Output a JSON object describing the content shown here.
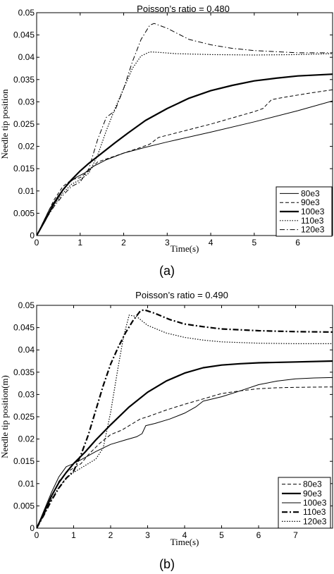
{
  "figure": {
    "panels": [
      {
        "label": "(a)"
      },
      {
        "label": "(b)"
      }
    ]
  },
  "chart_data": [
    {
      "type": "line",
      "title": "Poisson’s ratio  =  0.480",
      "xlabel": "Time(s)",
      "ylabel": "Needle tip position",
      "xlim": [
        0,
        6.8
      ],
      "ylim": [
        0,
        0.05
      ],
      "xticks": [
        0,
        1,
        2,
        3,
        4,
        5,
        6
      ],
      "yticks": [
        0,
        0.005,
        0.01,
        0.015,
        0.02,
        0.025,
        0.03,
        0.035,
        0.04,
        0.045,
        0.05
      ],
      "ytick_labels": [
        "0",
        "0.005",
        "0.01",
        "0.015",
        "0.02",
        "0.025",
        "0.03",
        "0.035",
        "0.04",
        "0.045",
        "0.05"
      ],
      "grid": false,
      "legend_position": "right",
      "series": [
        {
          "name": "80e3",
          "style": "solid-thin",
          "points": [
            [
              0,
              0
            ],
            [
              0.1,
              0.002
            ],
            [
              0.3,
              0.006
            ],
            [
              0.5,
              0.009
            ],
            [
              0.7,
              0.0115
            ],
            [
              0.9,
              0.013
            ],
            [
              1.1,
              0.014
            ],
            [
              1.3,
              0.0155
            ],
            [
              1.6,
              0.017
            ],
            [
              2.0,
              0.0185
            ],
            [
              2.5,
              0.0198
            ],
            [
              3.0,
              0.021
            ],
            [
              4.0,
              0.0232
            ],
            [
              5.0,
              0.0255
            ],
            [
              6.0,
              0.028
            ],
            [
              6.8,
              0.0302
            ]
          ]
        },
        {
          "name": "90e3",
          "style": "dashed",
          "points": [
            [
              0,
              0
            ],
            [
              0.2,
              0.004
            ],
            [
              0.4,
              0.008
            ],
            [
              0.6,
              0.011
            ],
            [
              0.8,
              0.0125
            ],
            [
              1.0,
              0.013
            ],
            [
              1.2,
              0.0145
            ],
            [
              1.4,
              0.0165
            ],
            [
              1.7,
              0.0175
            ],
            [
              2.0,
              0.0185
            ],
            [
              2.4,
              0.0198
            ],
            [
              2.6,
              0.0205
            ],
            [
              2.8,
              0.022
            ],
            [
              3.2,
              0.023
            ],
            [
              4.0,
              0.025
            ],
            [
              5.0,
              0.0278
            ],
            [
              5.2,
              0.0285
            ],
            [
              5.4,
              0.0305
            ],
            [
              5.8,
              0.0312
            ],
            [
              6.3,
              0.032
            ],
            [
              6.8,
              0.0327
            ]
          ]
        },
        {
          "name": "100e3",
          "style": "solid-bold",
          "points": [
            [
              0,
              0
            ],
            [
              0.2,
              0.0035
            ],
            [
              0.4,
              0.0072
            ],
            [
              0.6,
              0.0102
            ],
            [
              0.8,
              0.0125
            ],
            [
              1.0,
              0.0145
            ],
            [
              1.2,
              0.0162
            ],
            [
              1.5,
              0.0185
            ],
            [
              1.8,
              0.0208
            ],
            [
              2.1,
              0.023
            ],
            [
              2.5,
              0.0258
            ],
            [
              3.0,
              0.0285
            ],
            [
              3.5,
              0.0308
            ],
            [
              4.0,
              0.0325
            ],
            [
              4.5,
              0.0337
            ],
            [
              5.0,
              0.0347
            ],
            [
              5.5,
              0.0353
            ],
            [
              6.0,
              0.0358
            ],
            [
              6.8,
              0.0362
            ]
          ]
        },
        {
          "name": "110e3",
          "style": "dotted",
          "points": [
            [
              0,
              0
            ],
            [
              0.2,
              0.0035
            ],
            [
              0.4,
              0.0068
            ],
            [
              0.6,
              0.0095
            ],
            [
              0.8,
              0.0115
            ],
            [
              1.0,
              0.0125
            ],
            [
              1.2,
              0.014
            ],
            [
              1.4,
              0.018
            ],
            [
              1.6,
              0.0235
            ],
            [
              1.8,
              0.0285
            ],
            [
              2.0,
              0.033
            ],
            [
              2.2,
              0.0375
            ],
            [
              2.4,
              0.0403
            ],
            [
              2.6,
              0.0412
            ],
            [
              2.8,
              0.0411
            ],
            [
              3.2,
              0.0408
            ],
            [
              4.0,
              0.0406
            ],
            [
              5.0,
              0.0405
            ],
            [
              6.0,
              0.0406
            ],
            [
              6.8,
              0.0408
            ]
          ]
        },
        {
          "name": "120e3",
          "style": "dashdot",
          "points": [
            [
              0,
              0
            ],
            [
              0.2,
              0.0035
            ],
            [
              0.4,
              0.0065
            ],
            [
              0.6,
              0.009
            ],
            [
              0.8,
              0.011
            ],
            [
              1.0,
              0.012
            ],
            [
              1.2,
              0.015
            ],
            [
              1.4,
              0.0215
            ],
            [
              1.6,
              0.0265
            ],
            [
              1.8,
              0.028
            ],
            [
              2.0,
              0.033
            ],
            [
              2.2,
              0.039
            ],
            [
              2.4,
              0.044
            ],
            [
              2.6,
              0.0472
            ],
            [
              2.7,
              0.0476
            ],
            [
              3.0,
              0.0465
            ],
            [
              3.5,
              0.044
            ],
            [
              4.0,
              0.0428
            ],
            [
              4.5,
              0.042
            ],
            [
              5.0,
              0.0415
            ],
            [
              6.0,
              0.041
            ],
            [
              6.8,
              0.041
            ]
          ]
        }
      ]
    },
    {
      "type": "line",
      "title": "Poisson’s ratio  =  0.490",
      "xlabel": "Time(s)",
      "ylabel": "Needle tip position(m)",
      "xlim": [
        0,
        8
      ],
      "ylim": [
        0,
        0.05
      ],
      "xticks": [
        0,
        1,
        2,
        3,
        4,
        5,
        6,
        7
      ],
      "yticks": [
        0,
        0.005,
        0.01,
        0.015,
        0.02,
        0.025,
        0.03,
        0.035,
        0.04,
        0.045,
        0.05
      ],
      "ytick_labels": [
        "0",
        "0.005",
        "0.01",
        "0.015",
        "0.02",
        "0.025",
        "0.03",
        "0.035",
        "0.04",
        "0.045",
        "0.05"
      ],
      "grid": false,
      "legend_position": "right",
      "series": [
        {
          "name": "80e3",
          "style": "dashed",
          "points": [
            [
              0,
              0
            ],
            [
              0.2,
              0.003
            ],
            [
              0.4,
              0.007
            ],
            [
              0.6,
              0.0105
            ],
            [
              0.8,
              0.0125
            ],
            [
              1.0,
              0.0135
            ],
            [
              1.2,
              0.0145
            ],
            [
              1.4,
              0.0165
            ],
            [
              1.7,
              0.019
            ],
            [
              2.0,
              0.021
            ],
            [
              2.3,
              0.022
            ],
            [
              2.6,
              0.0235
            ],
            [
              2.8,
              0.0245
            ],
            [
              3.0,
              0.025
            ],
            [
              3.5,
              0.0265
            ],
            [
              4.0,
              0.0278
            ],
            [
              4.5,
              0.029
            ],
            [
              5.0,
              0.0302
            ],
            [
              5.5,
              0.0308
            ],
            [
              6.0,
              0.0313
            ],
            [
              6.5,
              0.0315
            ],
            [
              7.0,
              0.0316
            ],
            [
              8.0,
              0.0317
            ]
          ]
        },
        {
          "name": "90e3",
          "style": "solid-bold",
          "points": [
            [
              0,
              0
            ],
            [
              0.2,
              0.0035
            ],
            [
              0.4,
              0.0072
            ],
            [
              0.6,
              0.0102
            ],
            [
              0.8,
              0.0125
            ],
            [
              1.0,
              0.0145
            ],
            [
              1.3,
              0.017
            ],
            [
              1.6,
              0.0198
            ],
            [
              2.0,
              0.0232
            ],
            [
              2.5,
              0.0272
            ],
            [
              3.0,
              0.0305
            ],
            [
              3.5,
              0.033
            ],
            [
              4.0,
              0.0348
            ],
            [
              4.5,
              0.036
            ],
            [
              5.0,
              0.0366
            ],
            [
              5.5,
              0.0369
            ],
            [
              6.0,
              0.0371
            ],
            [
              7.0,
              0.0373
            ],
            [
              8.0,
              0.0375
            ]
          ]
        },
        {
          "name": "100e3",
          "style": "solid-thin",
          "points": [
            [
              0,
              0
            ],
            [
              0.2,
              0.004
            ],
            [
              0.4,
              0.008
            ],
            [
              0.6,
              0.0115
            ],
            [
              0.8,
              0.0138
            ],
            [
              1.0,
              0.0145
            ],
            [
              1.3,
              0.0158
            ],
            [
              1.6,
              0.0172
            ],
            [
              2.0,
              0.0188
            ],
            [
              2.4,
              0.0198
            ],
            [
              2.7,
              0.0205
            ],
            [
              2.85,
              0.0212
            ],
            [
              2.95,
              0.023
            ],
            [
              3.2,
              0.0235
            ],
            [
              3.6,
              0.0245
            ],
            [
              4.0,
              0.0258
            ],
            [
              4.3,
              0.0272
            ],
            [
              4.5,
              0.0285
            ],
            [
              5.0,
              0.0295
            ],
            [
              5.5,
              0.0308
            ],
            [
              6.0,
              0.0322
            ],
            [
              6.5,
              0.033
            ],
            [
              7.0,
              0.0335
            ],
            [
              7.5,
              0.0337
            ],
            [
              8.0,
              0.0338
            ]
          ]
        },
        {
          "name": "110e3",
          "style": "dashdot-bold",
          "points": [
            [
              0,
              0
            ],
            [
              0.2,
              0.003
            ],
            [
              0.4,
              0.0062
            ],
            [
              0.6,
              0.009
            ],
            [
              0.8,
              0.0112
            ],
            [
              1.0,
              0.0128
            ],
            [
              1.2,
              0.0165
            ],
            [
              1.4,
              0.021
            ],
            [
              1.6,
              0.0265
            ],
            [
              1.8,
              0.032
            ],
            [
              2.0,
              0.0368
            ],
            [
              2.2,
              0.0405
            ],
            [
              2.4,
              0.0438
            ],
            [
              2.6,
              0.0465
            ],
            [
              2.8,
              0.0487
            ],
            [
              2.9,
              0.049
            ],
            [
              3.2,
              0.0482
            ],
            [
              3.6,
              0.0468
            ],
            [
              4.0,
              0.0458
            ],
            [
              4.5,
              0.0452
            ],
            [
              5.0,
              0.0447
            ],
            [
              6.0,
              0.0443
            ],
            [
              7.0,
              0.0441
            ],
            [
              8.0,
              0.044
            ]
          ]
        },
        {
          "name": "120e3",
          "style": "dotted",
          "points": [
            [
              0,
              0
            ],
            [
              0.2,
              0.003
            ],
            [
              0.4,
              0.0065
            ],
            [
              0.6,
              0.0092
            ],
            [
              0.8,
              0.0112
            ],
            [
              1.0,
              0.0125
            ],
            [
              1.3,
              0.014
            ],
            [
              1.6,
              0.0155
            ],
            [
              1.8,
              0.018
            ],
            [
              2.0,
              0.026
            ],
            [
              2.2,
              0.036
            ],
            [
              2.35,
              0.043
            ],
            [
              2.5,
              0.0478
            ],
            [
              2.7,
              0.0475
            ],
            [
              3.0,
              0.0455
            ],
            [
              3.5,
              0.0438
            ],
            [
              4.0,
              0.0428
            ],
            [
              4.5,
              0.0422
            ],
            [
              5.0,
              0.0418
            ],
            [
              6.0,
              0.0415
            ],
            [
              7.0,
              0.0414
            ],
            [
              8.0,
              0.0414
            ]
          ]
        }
      ]
    }
  ]
}
